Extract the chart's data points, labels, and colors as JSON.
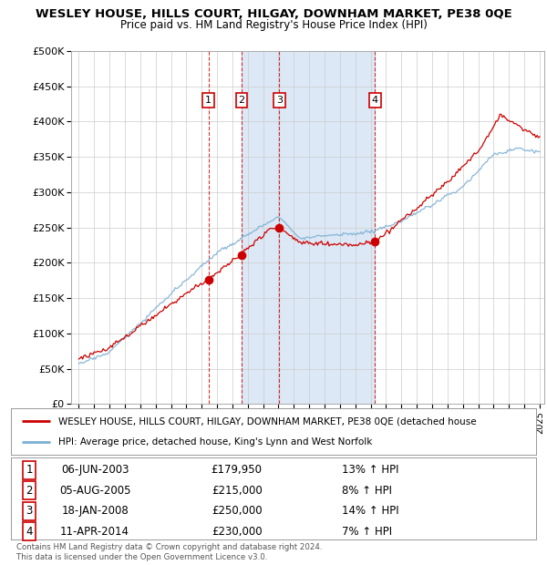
{
  "title": "WESLEY HOUSE, HILLS COURT, HILGAY, DOWNHAM MARKET, PE38 0QE",
  "subtitle": "Price paid vs. HM Land Registry's House Price Index (HPI)",
  "hpi_label": "HPI: Average price, detached house, King's Lynn and West Norfolk",
  "property_label": "WESLEY HOUSE, HILLS COURT, HILGAY, DOWNHAM MARKET, PE38 0QE (detached house",
  "footer": "Contains HM Land Registry data © Crown copyright and database right 2024.\nThis data is licensed under the Open Government Licence v3.0.",
  "transactions": [
    {
      "num": 1,
      "date": "06-JUN-2003",
      "price": 179950,
      "pct": "13%",
      "dir": "↑",
      "year": 2003.44
    },
    {
      "num": 2,
      "date": "05-AUG-2005",
      "price": 215000,
      "pct": "8%",
      "dir": "↑",
      "year": 2005.6
    },
    {
      "num": 3,
      "date": "18-JAN-2008",
      "price": 250000,
      "pct": "14%",
      "dir": "↑",
      "year": 2008.05
    },
    {
      "num": 4,
      "date": "11-APR-2014",
      "price": 230000,
      "pct": "7%",
      "dir": "↑",
      "year": 2014.28
    }
  ],
  "shaded_spans": [
    [
      2005.6,
      2014.28
    ]
  ],
  "ylim": [
    0,
    500000
  ],
  "yticks": [
    0,
    50000,
    100000,
    150000,
    200000,
    250000,
    300000,
    350000,
    400000,
    450000,
    500000
  ],
  "red_color": "#cc0000",
  "blue_color": "#7bafd4",
  "background_color": "#ffffff",
  "grid_color": "#cccccc",
  "shaded_color": "#dce8f5",
  "box_color": "#cc0000",
  "xlim": [
    1994.5,
    2025.3
  ]
}
